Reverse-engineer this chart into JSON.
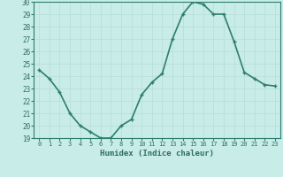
{
  "x": [
    0,
    1,
    2,
    3,
    4,
    5,
    6,
    7,
    8,
    9,
    10,
    11,
    12,
    13,
    14,
    15,
    16,
    17,
    18,
    19,
    20,
    21,
    22,
    23
  ],
  "y": [
    24.5,
    23.8,
    22.7,
    21.0,
    20.0,
    19.5,
    19.0,
    19.0,
    20.0,
    20.5,
    22.5,
    23.5,
    24.2,
    27.0,
    29.0,
    30.0,
    29.8,
    29.0,
    29.0,
    26.8,
    24.3,
    23.8,
    23.3,
    23.2
  ],
  "xlabel": "Humidex (Indice chaleur)",
  "ylim": [
    19,
    30
  ],
  "xlim_left": -0.5,
  "xlim_right": 23.5,
  "yticks": [
    19,
    20,
    21,
    22,
    23,
    24,
    25,
    26,
    27,
    28,
    29,
    30
  ],
  "xticks": [
    0,
    1,
    2,
    3,
    4,
    5,
    6,
    7,
    8,
    9,
    10,
    11,
    12,
    13,
    14,
    15,
    16,
    17,
    18,
    19,
    20,
    21,
    22,
    23
  ],
  "line_color": "#2e7d6e",
  "bg_color": "#c8ece8",
  "grid_color": "#b8dcd6",
  "tick_label_color": "#2e6e60",
  "xlabel_color": "#2e6e60",
  "line_width": 1.2,
  "marker_size": 3.5
}
